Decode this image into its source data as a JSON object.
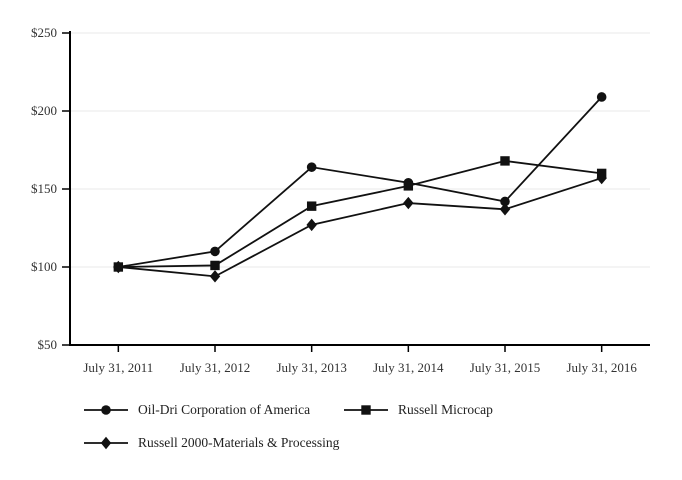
{
  "chart_data": {
    "type": "line",
    "title": "",
    "xlabel": "",
    "ylabel": "",
    "categories": [
      "July 31, 2011",
      "July 31, 2012",
      "July 31, 2013",
      "July 31, 2014",
      "July 31, 2015",
      "July 31, 2016"
    ],
    "series": [
      {
        "name": "Oil-Dri Corporation of America",
        "marker": "circle",
        "values": [
          100,
          110,
          164,
          154,
          142,
          209
        ]
      },
      {
        "name": "Russell Microcap",
        "marker": "square",
        "values": [
          100,
          101,
          139,
          152,
          168,
          160
        ]
      },
      {
        "name": "Russell 2000-Materials & Processing",
        "marker": "diamond",
        "values": [
          100,
          94,
          127,
          141,
          137,
          157
        ]
      }
    ],
    "ylim": [
      50,
      250
    ],
    "y_ticks": [
      50,
      100,
      150,
      200,
      250
    ],
    "y_tick_labels": [
      "$50",
      "$100",
      "$150",
      "$200",
      "$250"
    ],
    "grid": "horizontal",
    "legend_position": "bottom",
    "colors": {
      "line": "#111111",
      "axis": "#000000",
      "grid": "#e8e8e8",
      "text": "#333333"
    }
  }
}
